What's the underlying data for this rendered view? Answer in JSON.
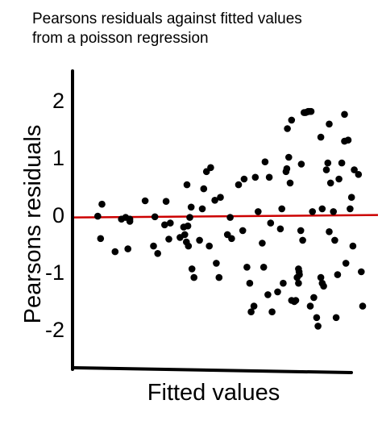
{
  "title_lines": [
    "Pearsons residuals against fitted values",
    "from a poisson regression"
  ],
  "colors": {
    "points": "#000000",
    "axes": "#000000",
    "reference_line": "#cc0000"
  },
  "chart_data": {
    "type": "scatter",
    "title": "Pearsons residuals against fitted values from a poisson regression",
    "xlabel": "Fitted values",
    "ylabel": "Pearsons residuals",
    "xlim": [
      0,
      100
    ],
    "ylim": [
      -2.75,
      2.25
    ],
    "xticks_labeled": false,
    "y_ticks": [
      2,
      1,
      0,
      -1,
      -2
    ],
    "y_tick_labels": [
      "2",
      "1",
      "0",
      "-1",
      "-2"
    ],
    "reference_line": {
      "y": -0.03,
      "color": "#cc0000"
    },
    "grid": false,
    "legend": "none",
    "points": [
      {
        "x": 5.0,
        "y": -0.03
      },
      {
        "x": 6.5,
        "y": 0.18
      },
      {
        "x": 6.0,
        "y": -0.42
      },
      {
        "x": 11.2,
        "y": -0.65
      },
      {
        "x": 13.5,
        "y": -0.08
      },
      {
        "x": 15.0,
        "y": -0.05
      },
      {
        "x": 16.5,
        "y": -0.08
      },
      {
        "x": 15.8,
        "y": -0.6
      },
      {
        "x": 16.5,
        "y": -0.12
      },
      {
        "x": 22.0,
        "y": 0.24
      },
      {
        "x": 25.0,
        "y": -0.55
      },
      {
        "x": 26.5,
        "y": -0.68
      },
      {
        "x": 25.5,
        "y": -0.04
      },
      {
        "x": 29.5,
        "y": 0.23
      },
      {
        "x": 29.0,
        "y": -0.18
      },
      {
        "x": 30.5,
        "y": -0.43
      },
      {
        "x": 31.0,
        "y": -0.15
      },
      {
        "x": 34.5,
        "y": -0.4
      },
      {
        "x": 35.8,
        "y": -0.22
      },
      {
        "x": 36.2,
        "y": -0.35
      },
      {
        "x": 36.8,
        "y": -0.48
      },
      {
        "x": 37.5,
        "y": -0.55
      },
      {
        "x": 37.3,
        "y": -0.2
      },
      {
        "x": 38.0,
        "y": -0.05
      },
      {
        "x": 38.5,
        "y": 0.13
      },
      {
        "x": 37.0,
        "y": 0.52
      },
      {
        "x": 38.8,
        "y": -0.95
      },
      {
        "x": 39.5,
        "y": -1.1
      },
      {
        "x": 41.5,
        "y": -0.45
      },
      {
        "x": 42.5,
        "y": 0.1
      },
      {
        "x": 43.0,
        "y": 0.45
      },
      {
        "x": 44.0,
        "y": 0.75
      },
      {
        "x": 45.0,
        "y": -0.55
      },
      {
        "x": 47.5,
        "y": -0.85
      },
      {
        "x": 48.5,
        "y": -1.1
      },
      {
        "x": 49.0,
        "y": 0.3
      },
      {
        "x": 51.5,
        "y": -0.35
      },
      {
        "x": 52.5,
        "y": -0.05
      },
      {
        "x": 53.0,
        "y": -0.42
      },
      {
        "x": 55.5,
        "y": 0.52
      },
      {
        "x": 57.0,
        "y": -0.28
      },
      {
        "x": 58.5,
        "y": -0.92
      },
      {
        "x": 59.5,
        "y": -1.2
      },
      {
        "x": 60.0,
        "y": -1.7
      },
      {
        "x": 61.0,
        "y": -1.6
      },
      {
        "x": 61.5,
        "y": 0.65
      },
      {
        "x": 64.0,
        "y": -0.5
      },
      {
        "x": 64.5,
        "y": -0.92
      },
      {
        "x": 66.0,
        "y": -1.4
      },
      {
        "x": 65.0,
        "y": 0.92
      },
      {
        "x": 66.5,
        "y": 0.65
      },
      {
        "x": 67.0,
        "y": -0.15
      },
      {
        "x": 67.5,
        "y": -1.7
      },
      {
        "x": 70.5,
        "y": -0.25
      },
      {
        "x": 71.0,
        "y": 0.1
      },
      {
        "x": 71.5,
        "y": -1.2
      },
      {
        "x": 72.5,
        "y": 0.75
      },
      {
        "x": 72.8,
        "y": 0.8
      },
      {
        "x": 73.5,
        "y": 1.0
      },
      {
        "x": 74.0,
        "y": 0.55
      },
      {
        "x": 73.0,
        "y": 1.5
      },
      {
        "x": 74.5,
        "y": 1.65
      },
      {
        "x": 74.5,
        "y": -1.5
      },
      {
        "x": 75.5,
        "y": -1.52
      },
      {
        "x": 76.0,
        "y": -1.5
      },
      {
        "x": 76.5,
        "y": -1.1
      },
      {
        "x": 77.0,
        "y": -0.95
      },
      {
        "x": 77.2,
        "y": -1.0
      },
      {
        "x": 77.3,
        "y": -1.05
      },
      {
        "x": 77.0,
        "y": -1.2
      },
      {
        "x": 77.8,
        "y": -0.28
      },
      {
        "x": 78.0,
        "y": 0.88
      },
      {
        "x": 78.5,
        "y": -0.45
      },
      {
        "x": 79.0,
        "y": 1.78
      },
      {
        "x": 79.5,
        "y": 1.78
      },
      {
        "x": 80.0,
        "y": 1.79
      },
      {
        "x": 80.5,
        "y": 1.8
      },
      {
        "x": 81.0,
        "y": 1.8
      },
      {
        "x": 81.5,
        "y": 1.8
      },
      {
        "x": 81.2,
        "y": -1.6
      },
      {
        "x": 82.0,
        "y": 0.05
      },
      {
        "x": 82.5,
        "y": -1.45
      },
      {
        "x": 83.5,
        "y": -1.8
      },
      {
        "x": 84.0,
        "y": -1.95
      },
      {
        "x": 85.0,
        "y": 1.35
      },
      {
        "x": 85.5,
        "y": 0.1
      },
      {
        "x": 85.0,
        "y": -1.1
      },
      {
        "x": 85.5,
        "y": -1.2
      },
      {
        "x": 86.0,
        "y": -1.25
      },
      {
        "x": 87.0,
        "y": 0.78
      },
      {
        "x": 87.5,
        "y": 0.9
      },
      {
        "x": 88.0,
        "y": -0.3
      },
      {
        "x": 88.0,
        "y": 1.58
      },
      {
        "x": 88.5,
        "y": 0.55
      },
      {
        "x": 89.5,
        "y": 0.05
      },
      {
        "x": 90.0,
        "y": -0.45
      },
      {
        "x": 90.5,
        "y": -1.8
      },
      {
        "x": 91.0,
        "y": -1.05
      },
      {
        "x": 92.5,
        "y": 0.9
      },
      {
        "x": 93.5,
        "y": 1.75
      },
      {
        "x": 93.5,
        "y": 1.28
      },
      {
        "x": 94.0,
        "y": -0.85
      },
      {
        "x": 94.8,
        "y": 1.3
      },
      {
        "x": 95.5,
        "y": 0.1
      },
      {
        "x": 96.0,
        "y": 0.3
      },
      {
        "x": 96.5,
        "y": -0.55
      },
      {
        "x": 97.0,
        "y": 0.78
      },
      {
        "x": 98.5,
        "y": 0.7
      },
      {
        "x": 99.5,
        "y": -1.0
      },
      {
        "x": 100.0,
        "y": -1.6
      },
      {
        "x": 57.5,
        "y": 0.62
      },
      {
        "x": 47.0,
        "y": 0.25
      },
      {
        "x": 45.5,
        "y": 0.82
      },
      {
        "x": 62.5,
        "y": 0.05
      },
      {
        "x": 69.5,
        "y": -1.35
      },
      {
        "x": 91.5,
        "y": 0.62
      }
    ]
  }
}
